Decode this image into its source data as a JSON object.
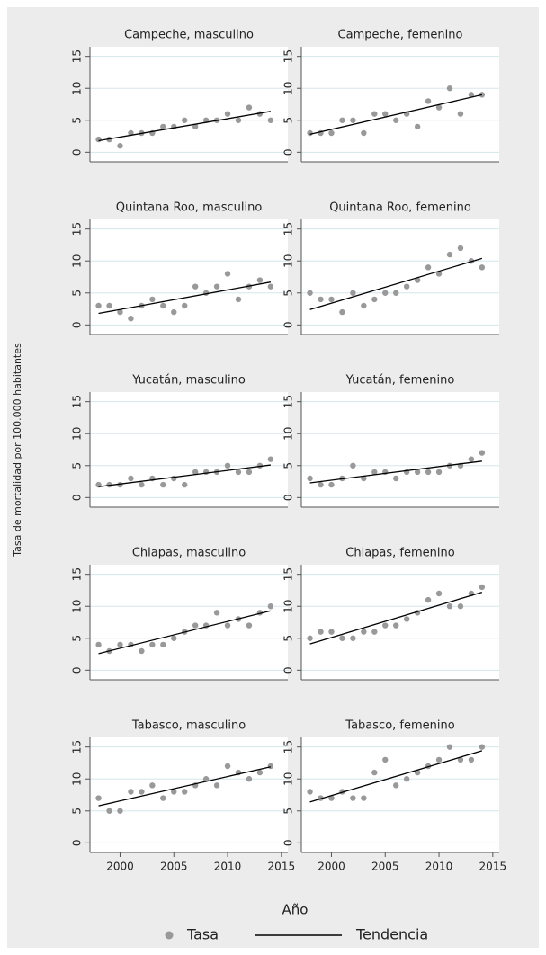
{
  "ylabel": "Tasa de mortalidad por 100.000 habitantes",
  "xlabel": "Año",
  "legend": [
    {
      "name": "Tasa",
      "color": "#999999"
    },
    {
      "name": "Tendencia",
      "color": "#000000"
    }
  ],
  "x": [
    1998,
    1999,
    2000,
    2001,
    2002,
    2003,
    2004,
    2005,
    2006,
    2007,
    2008,
    2009,
    2010,
    2011,
    2012,
    2013,
    2014
  ],
  "trend_x": [
    1998,
    2014
  ],
  "xlim": [
    1997.2,
    2015.6
  ],
  "xticks": [
    2000,
    2005,
    2010,
    2015
  ],
  "ylim": [
    -1.5,
    16.5
  ],
  "yticks": [
    0,
    5,
    10,
    15
  ],
  "grid": true,
  "chart_data": [
    {
      "type": "scatter",
      "title": "Campeche, masculino",
      "values": [
        2,
        2,
        1,
        3,
        3,
        3,
        4,
        4,
        5,
        4,
        5,
        5,
        6,
        5,
        7,
        6,
        5
      ],
      "trend": [
        1.8,
        6.4
      ]
    },
    {
      "type": "scatter",
      "title": "Campeche, femenino",
      "values": [
        3,
        3,
        3,
        5,
        5,
        3,
        6,
        6,
        5,
        6,
        4,
        8,
        7,
        10,
        6,
        9,
        9
      ],
      "trend": [
        2.8,
        9
      ]
    },
    {
      "type": "scatter",
      "title": "Quintana Roo, masculino",
      "values": [
        3,
        3,
        2,
        1,
        3,
        4,
        3,
        2,
        3,
        6,
        5,
        6,
        8,
        4,
        6,
        7,
        6
      ],
      "trend": [
        1.8,
        6.7
      ]
    },
    {
      "type": "scatter",
      "title": "Quintana Roo, femenino",
      "values": [
        5,
        4,
        4,
        2,
        5,
        3,
        4,
        5,
        5,
        6,
        7,
        9,
        8,
        11,
        12,
        10,
        9
      ],
      "trend": [
        2.4,
        10.4
      ]
    },
    {
      "type": "scatter",
      "title": "Yucatán, masculino",
      "values": [
        2,
        2,
        2,
        3,
        2,
        3,
        2,
        3,
        2,
        4,
        4,
        4,
        5,
        4,
        4,
        5,
        6
      ],
      "trend": [
        1.7,
        5.1
      ]
    },
    {
      "type": "scatter",
      "title": "Yucatán, femenino",
      "values": [
        3,
        2,
        2,
        3,
        5,
        3,
        4,
        4,
        3,
        4,
        4,
        4,
        4,
        5,
        5,
        6,
        7
      ],
      "trend": [
        2.3,
        5.7
      ]
    },
    {
      "type": "scatter",
      "title": "Chiapas, masculino",
      "values": [
        4,
        3,
        4,
        4,
        3,
        4,
        4,
        5,
        6,
        7,
        7,
        9,
        7,
        8,
        7,
        9,
        10
      ],
      "trend": [
        2.6,
        9.3
      ]
    },
    {
      "type": "scatter",
      "title": "Chiapas, femenino",
      "values": [
        5,
        6,
        6,
        5,
        5,
        6,
        6,
        7,
        7,
        8,
        9,
        11,
        12,
        10,
        10,
        12,
        13
      ],
      "trend": [
        4.1,
        12.2
      ]
    },
    {
      "type": "scatter",
      "title": "Tabasco, masculino",
      "values": [
        7,
        5,
        5,
        8,
        8,
        9,
        7,
        8,
        8,
        9,
        10,
        9,
        12,
        11,
        10,
        11,
        12
      ],
      "trend": [
        5.8,
        11.9
      ]
    },
    {
      "type": "scatter",
      "title": "Tabasco, femenino",
      "values": [
        8,
        7,
        7,
        8,
        7,
        7,
        11,
        13,
        9,
        10,
        11,
        12,
        13,
        15,
        13,
        13,
        15
      ],
      "trend": [
        6.4,
        14.4
      ]
    }
  ]
}
